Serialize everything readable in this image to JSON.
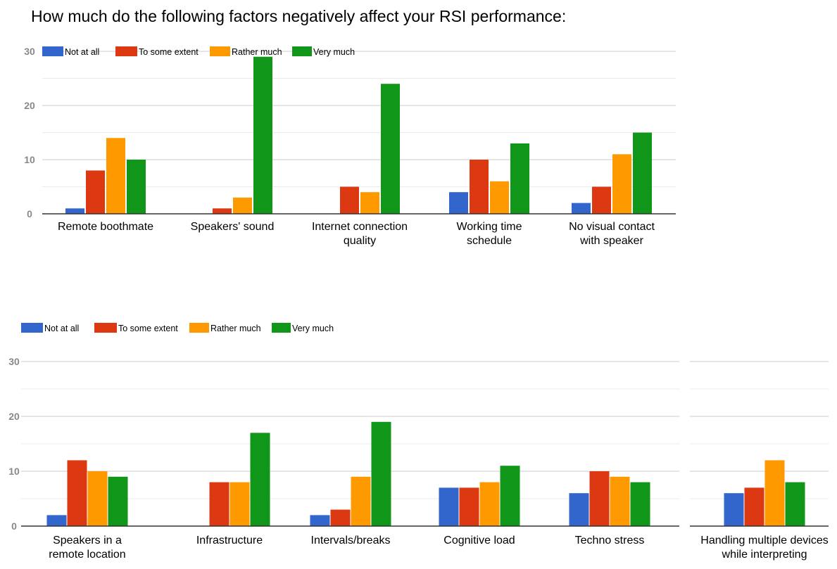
{
  "title": "How much do the following factors negatively affect your RSI performance:",
  "colors": {
    "Not at all": "#3366cc",
    "To some extent": "#dc3912",
    "Rather much": "#ff9900",
    "Very much": "#109618"
  },
  "chart_data": [
    {
      "type": "bar",
      "categories": [
        [
          "Remote boothmate"
        ],
        [
          "Speakers' sound"
        ],
        [
          "Internet connection",
          "quality"
        ],
        [
          "Working time",
          "schedule"
        ],
        [
          "No visual contact",
          "with speaker"
        ]
      ],
      "series": [
        {
          "name": "Not at all",
          "values": [
            1,
            0,
            0,
            4,
            2
          ]
        },
        {
          "name": "To some extent",
          "values": [
            8,
            1,
            5,
            10,
            5
          ]
        },
        {
          "name": "Rather much",
          "values": [
            14,
            3,
            4,
            6,
            11
          ]
        },
        {
          "name": "Very much",
          "values": [
            10,
            29,
            24,
            13,
            15
          ]
        }
      ],
      "ylim": [
        0,
        30
      ],
      "yticks": [
        0,
        10,
        20,
        30
      ],
      "legend": "top",
      "grid": true
    },
    {
      "type": "bar",
      "categories": [
        [
          "Speakers in a",
          "remote location"
        ],
        [
          "Infrastructure"
        ],
        [
          "Intervals/breaks"
        ],
        [
          "Cognitive load"
        ],
        [
          "Techno stress"
        ]
      ],
      "series": [
        {
          "name": "Not at all",
          "values": [
            2,
            0,
            2,
            7,
            6
          ]
        },
        {
          "name": "To some extent",
          "values": [
            12,
            8,
            3,
            7,
            10
          ]
        },
        {
          "name": "Rather much",
          "values": [
            10,
            8,
            9,
            8,
            9
          ]
        },
        {
          "name": "Very much",
          "values": [
            9,
            17,
            19,
            11,
            8
          ]
        }
      ],
      "ylim": [
        0,
        30
      ],
      "yticks": [
        0,
        10,
        20,
        30
      ],
      "legend": "top",
      "grid": true
    },
    {
      "type": "bar",
      "categories": [
        [
          "Handling multiple devices",
          "while interpreting"
        ]
      ],
      "series": [
        {
          "name": "Not at all",
          "values": [
            6
          ]
        },
        {
          "name": "To some extent",
          "values": [
            7
          ]
        },
        {
          "name": "Rather much",
          "values": [
            12
          ]
        },
        {
          "name": "Very much",
          "values": [
            8
          ]
        }
      ],
      "ylim": [
        0,
        30
      ],
      "grid": true
    }
  ]
}
